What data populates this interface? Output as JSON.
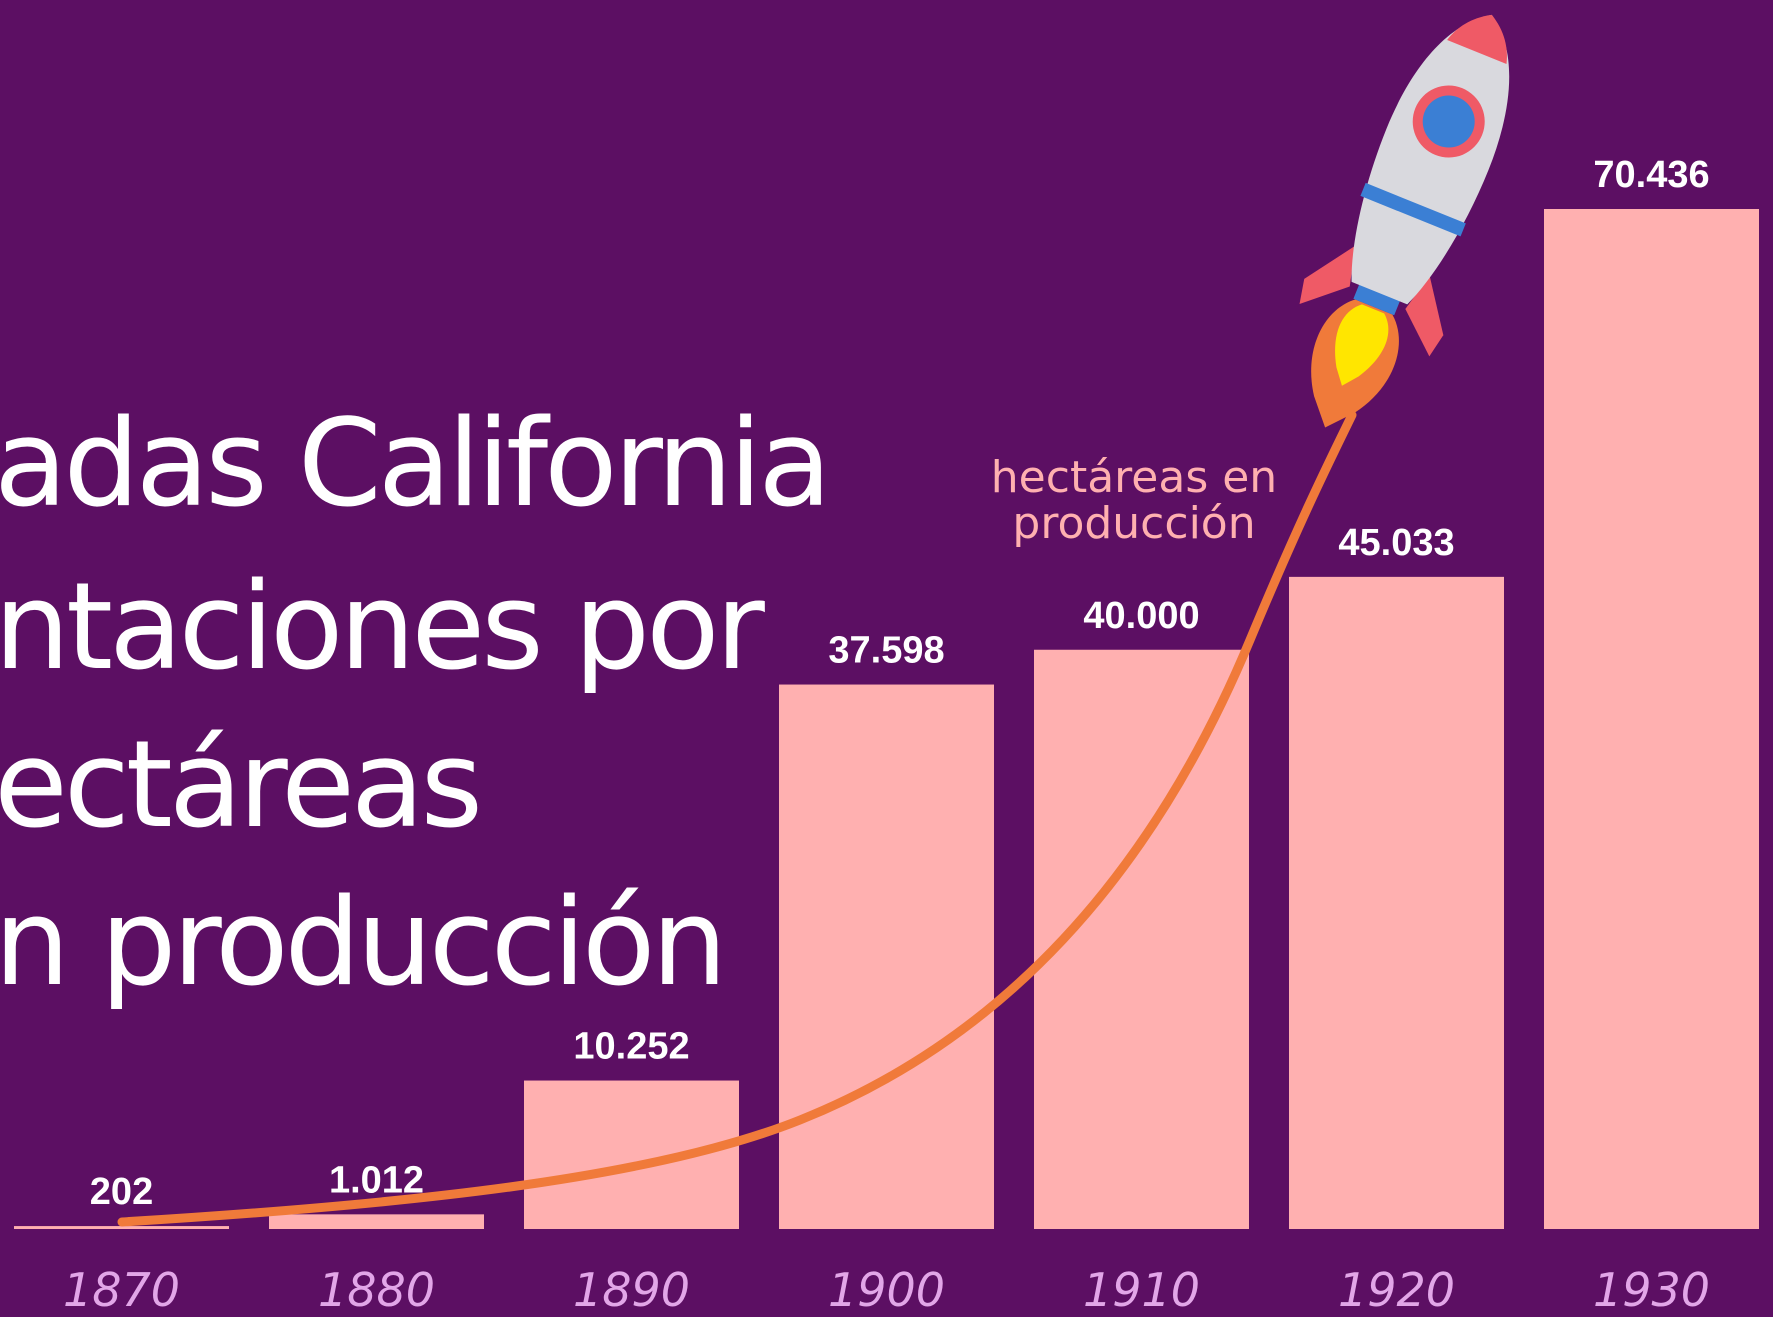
{
  "chart_data": {
    "type": "bar",
    "title_lines": [
      "adas California",
      "ntaciones por",
      "ectáreas",
      "n producción"
    ],
    "annotation_lines": [
      "hectáreas en",
      "producción"
    ],
    "categories": [
      "1870",
      "1880",
      "1890",
      "1900",
      "1910",
      "1920",
      "1930"
    ],
    "values": [
      202,
      1012,
      10252,
      37598,
      40000,
      45033,
      70436
    ],
    "value_labels": [
      "202",
      "1.012",
      "10.252",
      "37.598",
      "40.000",
      "45.033",
      "70.436"
    ],
    "color": "#ffb0b0"
  }
}
